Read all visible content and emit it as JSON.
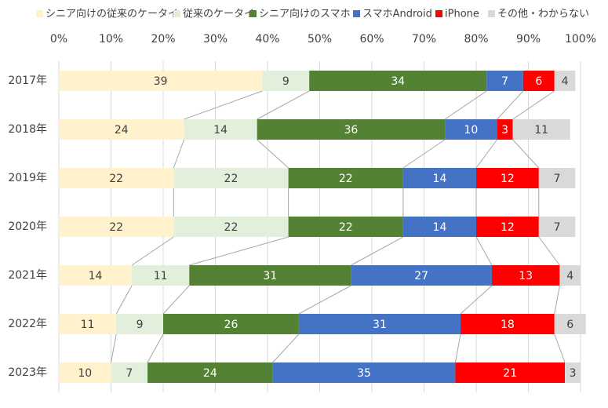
{
  "chart_data": {
    "type": "stacked-bar",
    "orientation": "horizontal",
    "categories": [
      "2017年",
      "2018年",
      "2019年",
      "2020年",
      "2021年",
      "2022年",
      "2023年"
    ],
    "series": [
      {
        "name": "シニア向けの従来のケータイ",
        "color": "#fff2cc",
        "values": [
          39,
          24,
          22,
          22,
          14,
          11,
          10
        ]
      },
      {
        "name": "従来のケータイ",
        "color": "#e2efda",
        "values": [
          9,
          14,
          22,
          22,
          11,
          9,
          7
        ]
      },
      {
        "name": "シニア向けのスマホ",
        "color": "#548235",
        "values": [
          34,
          36,
          22,
          22,
          31,
          26,
          24
        ]
      },
      {
        "name": "スマホAndroid",
        "color": "#4472c4",
        "values": [
          7,
          10,
          14,
          14,
          27,
          31,
          35
        ]
      },
      {
        "name": "iPhone",
        "color": "#ff0000",
        "values": [
          6,
          3,
          12,
          12,
          13,
          18,
          21
        ]
      },
      {
        "name": "その他・わからない",
        "color": "#d9d9d9",
        "values": [
          4,
          11,
          7,
          7,
          4,
          6,
          3
        ]
      }
    ],
    "xlim": [
      0,
      100
    ],
    "xticks": [
      {
        "value": 0,
        "label": "0%"
      },
      {
        "value": 10,
        "label": "10%"
      },
      {
        "value": 20,
        "label": "20%"
      },
      {
        "value": 30,
        "label": "30%"
      },
      {
        "value": 40,
        "label": "40%"
      },
      {
        "value": 50,
        "label": "50%"
      },
      {
        "value": 60,
        "label": "60%"
      },
      {
        "value": 70,
        "label": "70%"
      },
      {
        "value": 80,
        "label": "80%"
      },
      {
        "value": 90,
        "label": "90%"
      },
      {
        "value": 100,
        "label": "100%"
      }
    ],
    "grid": true,
    "legend": "top"
  }
}
